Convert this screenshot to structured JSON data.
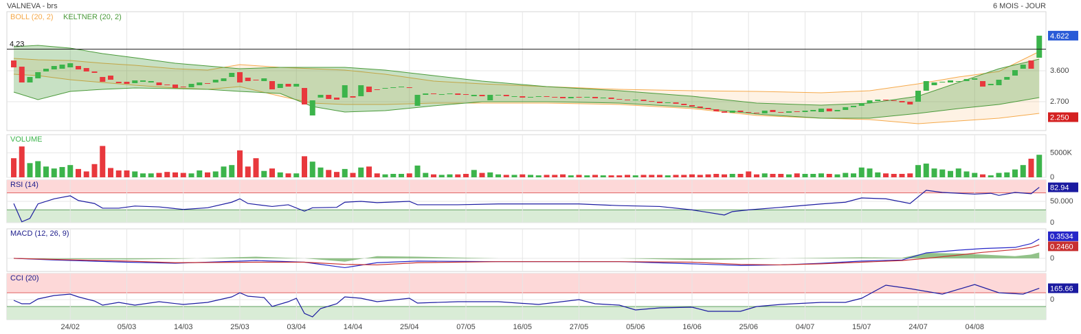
{
  "chart_data": [
    {
      "type": "candlestick",
      "title": "VALNEVA - brs",
      "subtitle": "6 MOIS - JOUR",
      "categories": [
        null,
        null,
        null,
        null,
        null,
        null,
        null,
        "24/02",
        null,
        null,
        null,
        null,
        null,
        null,
        "05/03",
        null,
        null,
        null,
        null,
        null,
        null,
        "14/03",
        null,
        null,
        null,
        null,
        null,
        null,
        "25/03",
        null,
        null,
        null,
        null,
        null,
        null,
        "03/04",
        null,
        null,
        null,
        null,
        null,
        null,
        "14/04",
        null,
        null,
        null,
        null,
        null,
        null,
        "25/04",
        null,
        null,
        null,
        null,
        null,
        null,
        "07/05",
        null,
        null,
        null,
        null,
        null,
        null,
        "16/05",
        null,
        null,
        null,
        null,
        null,
        null,
        "27/05",
        null,
        null,
        null,
        null,
        null,
        null,
        "05/06",
        null,
        null,
        null,
        null,
        null,
        null,
        "16/06",
        null,
        null,
        null,
        null,
        null,
        null,
        "25/06",
        null,
        null,
        null,
        null,
        null,
        null,
        "04/07",
        null,
        null,
        null,
        null,
        null,
        null,
        "15/07",
        null,
        null,
        null,
        null,
        null,
        null,
        "24/07",
        null,
        null,
        null,
        null,
        null,
        null,
        "04/08",
        null,
        null,
        null,
        null,
        null,
        null,
        null,
        null
      ],
      "open": [
        3.9,
        3.72,
        3.26,
        3.38,
        3.58,
        3.64,
        3.66,
        3.7,
        3.74,
        3.68,
        3.58,
        3.42,
        3.46,
        3.28,
        3.28,
        3.24,
        3.28,
        3.26,
        3.26,
        3.2,
        3.2,
        3.14,
        3.12,
        3.18,
        3.24,
        3.26,
        3.3,
        3.42,
        3.56,
        3.4,
        3.34,
        3.3,
        3.3,
        3.1,
        3.22,
        3.14,
        3.1,
        2.3,
        2.82,
        2.9,
        2.82,
        2.82,
        2.86,
        2.86,
        3.14,
        3.06,
        3.08,
        3.1,
        3.12,
        3.12,
        2.58,
        2.9,
        2.94,
        2.9,
        2.92,
        2.94,
        2.92,
        2.86,
        2.9,
        2.74,
        2.88,
        2.9,
        2.84,
        2.86,
        2.82,
        2.84,
        2.86,
        2.84,
        2.84,
        2.8,
        2.84,
        2.82,
        2.84,
        2.8,
        2.82,
        2.78,
        2.76,
        2.74,
        2.76,
        2.72,
        2.7,
        2.66,
        2.68,
        2.64,
        2.6,
        2.56,
        2.52,
        2.48,
        2.42,
        2.38,
        2.44,
        2.4,
        2.38,
        2.36,
        2.46,
        2.4,
        2.38,
        2.42,
        2.4,
        2.42,
        2.4,
        2.5,
        2.42,
        2.46,
        2.54,
        2.58,
        2.66,
        2.72,
        2.76,
        2.74,
        2.72,
        2.7,
        2.7,
        3.02,
        3.18,
        3.26,
        3.26,
        3.28,
        3.3,
        3.34,
        3.3,
        3.18,
        3.18,
        3.34,
        3.46,
        3.66,
        3.9,
        3.98
      ],
      "close": [
        3.7,
        3.26,
        3.42,
        3.56,
        3.66,
        3.74,
        3.78,
        3.82,
        3.64,
        3.58,
        3.54,
        3.28,
        3.34,
        3.24,
        3.22,
        3.32,
        3.32,
        3.3,
        3.18,
        3.18,
        3.1,
        3.12,
        3.22,
        3.26,
        3.22,
        3.34,
        3.38,
        3.54,
        3.26,
        3.3,
        3.32,
        3.38,
        3.06,
        3.22,
        3.14,
        3.22,
        2.62,
        2.74,
        2.9,
        2.78,
        2.76,
        3.18,
        2.82,
        3.18,
        2.98,
        3.04,
        3.1,
        3.12,
        3.14,
        3.1,
        2.9,
        2.94,
        2.92,
        2.92,
        2.94,
        2.9,
        2.9,
        2.9,
        2.86,
        2.9,
        2.9,
        2.86,
        2.86,
        2.82,
        2.84,
        2.86,
        2.84,
        2.82,
        2.8,
        2.84,
        2.82,
        2.84,
        2.8,
        2.82,
        2.78,
        2.76,
        2.74,
        2.76,
        2.72,
        2.7,
        2.66,
        2.68,
        2.64,
        2.6,
        2.56,
        2.52,
        2.48,
        2.42,
        2.38,
        2.44,
        2.4,
        2.38,
        2.36,
        2.44,
        2.4,
        2.38,
        2.42,
        2.4,
        2.44,
        2.46,
        2.5,
        2.42,
        2.46,
        2.54,
        2.58,
        2.66,
        2.74,
        2.76,
        2.74,
        2.72,
        2.68,
        2.62,
        3.02,
        3.3,
        3.26,
        3.28,
        3.32,
        3.3,
        3.36,
        3.38,
        3.14,
        3.22,
        3.34,
        3.42,
        3.62,
        3.78,
        3.66,
        4.622
      ],
      "up_color": "#3cb44b",
      "down_color": "#e8383d",
      "bands": [
        {
          "name": "BOLL (20, 2)",
          "color": "#f5a94a",
          "x": [
            0,
            3,
            7,
            11,
            15,
            20,
            24,
            28,
            33,
            37,
            41,
            46,
            52,
            58,
            66,
            75,
            84,
            92,
            100,
            106,
            112,
            117,
            122,
            127
          ],
          "upper": [
            3.96,
            3.92,
            3.9,
            3.82,
            3.76,
            3.66,
            3.62,
            3.78,
            3.7,
            3.66,
            3.62,
            3.5,
            3.3,
            3.22,
            3.14,
            3.06,
            3.02,
            3.0,
            2.96,
            3.02,
            3.22,
            3.42,
            3.58,
            4.16
          ],
          "lower": [
            3.5,
            3.46,
            3.34,
            3.26,
            3.18,
            3.1,
            3.06,
            3.14,
            2.86,
            2.66,
            2.62,
            2.62,
            2.66,
            2.66,
            2.66,
            2.62,
            2.5,
            2.3,
            2.22,
            2.18,
            2.06,
            2.14,
            2.22,
            2.36
          ]
        },
        {
          "name": "KELTNER (20, 2)",
          "color": "#4a9a3a",
          "x": [
            0,
            3,
            7,
            11,
            15,
            20,
            24,
            28,
            33,
            37,
            41,
            46,
            52,
            58,
            66,
            75,
            84,
            92,
            100,
            106,
            112,
            117,
            122,
            127
          ],
          "upper": [
            4.3,
            4.34,
            4.26,
            4.1,
            3.98,
            3.82,
            3.74,
            3.66,
            3.7,
            3.7,
            3.7,
            3.62,
            3.46,
            3.3,
            3.14,
            3.02,
            2.86,
            2.66,
            2.6,
            2.66,
            2.86,
            3.26,
            3.66,
            3.94
          ],
          "lower": [
            2.98,
            2.76,
            3.0,
            3.06,
            3.1,
            3.08,
            3.06,
            3.0,
            2.94,
            2.56,
            2.4,
            2.44,
            2.58,
            2.7,
            2.7,
            2.66,
            2.54,
            2.34,
            2.22,
            2.22,
            2.36,
            2.5,
            2.62,
            2.82
          ]
        }
      ],
      "hline": {
        "value": 4.23,
        "label": "4.23"
      },
      "last_price": {
        "value": 4.622,
        "label": "4.622"
      },
      "low_price": {
        "value": 2.25,
        "label": "2.250"
      },
      "ylim": [
        1.86,
        5.32
      ],
      "yticks": [
        {
          "value": 3.6,
          "label": "3.600"
        },
        {
          "value": 2.7,
          "label": "2.700"
        }
      ],
      "grid": true
    },
    {
      "type": "bar",
      "title": "VOLUME",
      "values": [
        3900,
        6300,
        2900,
        3300,
        2200,
        1800,
        2100,
        2500,
        1700,
        1200,
        2700,
        6400,
        1900,
        1400,
        1400,
        1200,
        800,
        800,
        900,
        1100,
        1000,
        900,
        800,
        1400,
        1000,
        1200,
        2200,
        2500,
        5500,
        2200,
        3900,
        1300,
        1800,
        1000,
        800,
        800,
        4300,
        3200,
        2000,
        1500,
        1100,
        1700,
        900,
        2000,
        2200,
        800,
        600,
        700,
        700,
        800,
        2400,
        900,
        600,
        500,
        600,
        600,
        700,
        1500,
        900,
        1000,
        600,
        500,
        500,
        600,
        500,
        400,
        500,
        500,
        600,
        400,
        500,
        400,
        500,
        400,
        400,
        400,
        500,
        400,
        500,
        500,
        500,
        400,
        500,
        500,
        600,
        500,
        600,
        700,
        600,
        700,
        700,
        1200,
        600,
        800,
        700,
        700,
        600,
        800,
        700,
        700,
        800,
        700,
        600,
        900,
        800,
        2000,
        1800,
        1000,
        800,
        700,
        700,
        800,
        2500,
        2800,
        1800,
        1600,
        1300,
        1800,
        1200,
        900,
        600,
        400,
        900,
        1000,
        1600,
        2500,
        3800,
        4600
      ],
      "ylim": [
        0,
        8700
      ],
      "yticks": [
        {
          "value": 5000,
          "label": "5000K"
        },
        0
      ],
      "grid": true
    },
    {
      "type": "line",
      "title": "RSI (14)",
      "color": "#1a1aa0",
      "x": [
        0,
        1,
        2,
        3,
        5,
        7,
        8,
        10,
        11,
        13,
        15,
        18,
        21,
        24,
        27,
        28,
        29,
        32,
        34,
        36,
        37,
        40,
        41,
        43,
        45,
        49,
        50,
        55,
        60,
        65,
        70,
        75,
        80,
        84,
        88,
        89,
        91,
        95,
        100,
        103,
        105,
        108,
        111,
        113,
        115,
        119,
        121,
        122,
        124,
        126,
        127
      ],
      "values": [
        45,
        2,
        10,
        44,
        56,
        63,
        52,
        45,
        34,
        34,
        39,
        37,
        31,
        35,
        48,
        56,
        45,
        38,
        42,
        27,
        35,
        36,
        48,
        50,
        47,
        50,
        42,
        42,
        44,
        44,
        44,
        40,
        38,
        30,
        18,
        26,
        30,
        36,
        44,
        48,
        58,
        56,
        45,
        76,
        71,
        67,
        69,
        64,
        71,
        68,
        82.94
      ],
      "zones": [
        30,
        70
      ],
      "ylim": [
        0,
        100
      ],
      "yticks": [
        {
          "value": 50,
          "label": "50.000"
        },
        0
      ],
      "grid": true
    },
    {
      "type": "line",
      "title": "MACD (12, 26, 9)",
      "x": [
        0,
        5,
        14,
        20,
        30,
        36,
        41,
        45,
        50,
        60,
        75,
        84,
        90,
        95,
        100,
        105,
        110,
        113,
        117,
        120,
        124,
        126,
        127
      ],
      "series": [
        {
          "color": "#2626c8",
          "values": [
            0,
            -0.03,
            -0.07,
            -0.09,
            -0.04,
            -0.07,
            -0.17,
            -0.08,
            -0.05,
            -0.06,
            -0.06,
            -0.1,
            -0.13,
            -0.12,
            -0.09,
            -0.05,
            -0.03,
            0.1,
            0.15,
            0.18,
            0.2,
            0.27,
            0.3534
          ]
        },
        {
          "color": "#c83030",
          "values": [
            0,
            -0.02,
            -0.05,
            -0.08,
            -0.07,
            -0.07,
            -0.11,
            -0.12,
            -0.08,
            -0.06,
            -0.06,
            -0.07,
            -0.11,
            -0.12,
            -0.1,
            -0.07,
            -0.04,
            0.0,
            0.06,
            0.11,
            0.16,
            0.2,
            0.246
          ],
          "value_labels": [
            null,
            null,
            null,
            null,
            null,
            null,
            null,
            null,
            null,
            null,
            null,
            null,
            null,
            null,
            null,
            null,
            null,
            null,
            null,
            null,
            null,
            null,
            "0.2460"
          ]
        }
      ],
      "histogram": {
        "color": "#4a9a3a",
        "values": [
          0,
          -0.01,
          -0.02,
          -0.01,
          0.03,
          0,
          -0.06,
          0.04,
          0.03,
          0,
          0,
          -0.03,
          -0.02,
          0,
          0.01,
          0.02,
          0.01,
          0.1,
          0.09,
          0.07,
          0.04,
          0.07,
          0.107
        ]
      },
      "ylim": [
        -0.24,
        0.54
      ],
      "yticks": [
        0
      ],
      "grid": true
    },
    {
      "type": "line",
      "title": "CCI (20)",
      "color": "#1a1aa0",
      "x": [
        0,
        1,
        2,
        3,
        5,
        7,
        8,
        10,
        11,
        13,
        15,
        18,
        21,
        24,
        27,
        28,
        29,
        31,
        32,
        34,
        35,
        36,
        37,
        38,
        40,
        41,
        43,
        45,
        49,
        50,
        55,
        60,
        65,
        70,
        72,
        75,
        77,
        80,
        84,
        86,
        90,
        92,
        95,
        100,
        103,
        105,
        108,
        111,
        115,
        119,
        122,
        125,
        127
      ],
      "values": [
        -10,
        -60,
        -60,
        10,
        60,
        80,
        40,
        -20,
        -80,
        -40,
        -80,
        -30,
        -70,
        -40,
        40,
        100,
        50,
        30,
        -100,
        -30,
        20,
        -200,
        -250,
        -130,
        -60,
        40,
        20,
        -30,
        20,
        -50,
        -30,
        -30,
        -70,
        0,
        -60,
        -80,
        -150,
        -120,
        -110,
        -170,
        -170,
        -100,
        -70,
        -40,
        -40,
        20,
        210,
        160,
        80,
        220,
        100,
        80,
        165.66
      ],
      "zones": [
        -100,
        100
      ],
      "ylim": [
        -290,
        380
      ],
      "yticks": [
        0
      ],
      "grid": true
    }
  ]
}
